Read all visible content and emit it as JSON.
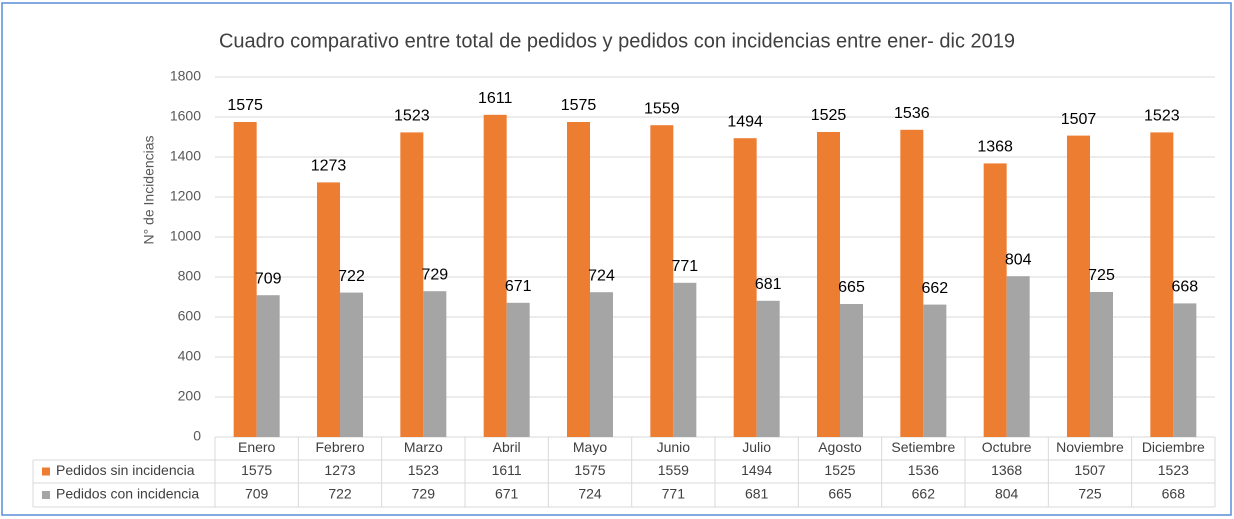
{
  "chart_data": {
    "type": "bar",
    "title": "Cuadro comparativo entre total de pedidos y pedidos con incidencias entre ener- dic 2019",
    "y_label": "N° de Incidencias",
    "categories": [
      "Enero",
      "Febrero",
      "Marzo",
      "Abril",
      "Mayo",
      "Junio",
      "Julio",
      "Agosto",
      "Setiembre",
      "Octubre",
      "Noviembre",
      "Diciembre"
    ],
    "series": [
      {
        "name": "Pedidos sin incidencia",
        "color": "#ed7d31",
        "values": [
          1575,
          1273,
          1523,
          1611,
          1575,
          1559,
          1494,
          1525,
          1536,
          1368,
          1507,
          1523
        ]
      },
      {
        "name": "Pedidos con incidencia",
        "color": "#a5a5a5",
        "values": [
          709,
          722,
          729,
          671,
          724,
          771,
          681,
          665,
          662,
          804,
          725,
          668
        ]
      }
    ],
    "ylim": [
      0,
      1800
    ],
    "yticks": [
      0,
      200,
      400,
      600,
      800,
      1000,
      1200,
      1400,
      1600,
      1800
    ],
    "grid": true
  }
}
